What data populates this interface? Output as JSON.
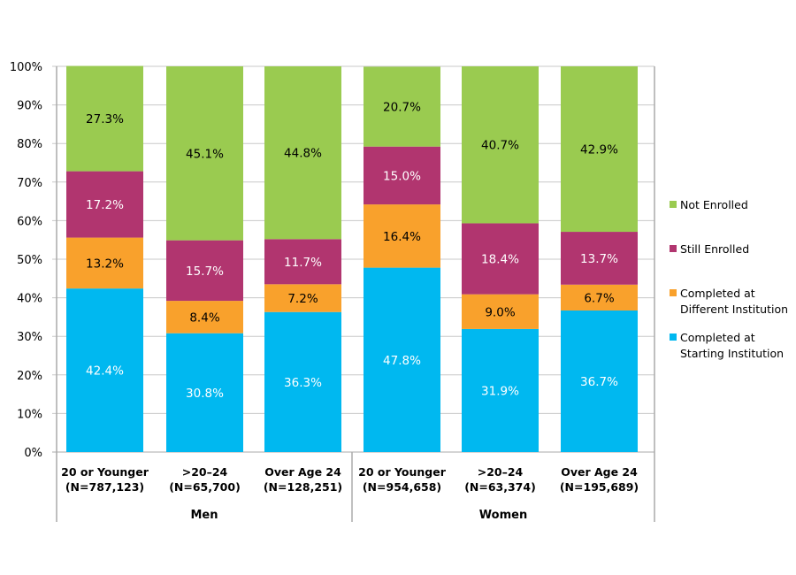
{
  "chart_data": {
    "type": "bar",
    "stacked": true,
    "title": "",
    "ylim": [
      0,
      100
    ],
    "yticks": [
      "0%",
      "10%",
      "20%",
      "30%",
      "40%",
      "50%",
      "60%",
      "70%",
      "80%",
      "90%",
      "100%"
    ],
    "grid": true,
    "legend_placement": "right",
    "groups": [
      {
        "label": "Men",
        "categories": [
          {
            "line1": "20 or Younger",
            "line2": "(N=787,123)"
          },
          {
            "line1": ">20–24",
            "line2": "(N=65,700)"
          },
          {
            "line1": "Over Age 24",
            "line2": "(N=128,251)"
          }
        ]
      },
      {
        "label": "Women",
        "categories": [
          {
            "line1": "20 or Younger",
            "line2": "(N=954,658)"
          },
          {
            "line1": ">20–24",
            "line2": "(N=63,374)"
          },
          {
            "line1": "Over Age 24",
            "line2": "(N=195,689)"
          }
        ]
      }
    ],
    "series": [
      {
        "name": "Completed at Starting Institution",
        "legend_lines": [
          "Completed at",
          "Starting Institution"
        ],
        "color": "#00b8f0",
        "label_color": "#ffffff",
        "values": [
          42.4,
          30.8,
          36.3,
          47.8,
          31.9,
          36.7
        ]
      },
      {
        "name": "Completed at Different Institution",
        "legend_lines": [
          "Completed at",
          "Different Institution"
        ],
        "color": "#f9a12c",
        "label_color": "#000000",
        "values": [
          13.2,
          8.4,
          7.2,
          16.4,
          9.0,
          6.7
        ]
      },
      {
        "name": "Still Enrolled",
        "legend_lines": [
          "Still Enrolled"
        ],
        "color": "#b1356f",
        "label_color": "#ffffff",
        "values": [
          17.2,
          15.7,
          11.7,
          15.0,
          18.4,
          13.7
        ]
      },
      {
        "name": "Not Enrolled",
        "legend_lines": [
          "Not Enrolled"
        ],
        "color": "#9acb50",
        "label_color": "#000000",
        "values": [
          27.3,
          45.1,
          44.8,
          20.7,
          40.7,
          42.9
        ]
      }
    ]
  }
}
